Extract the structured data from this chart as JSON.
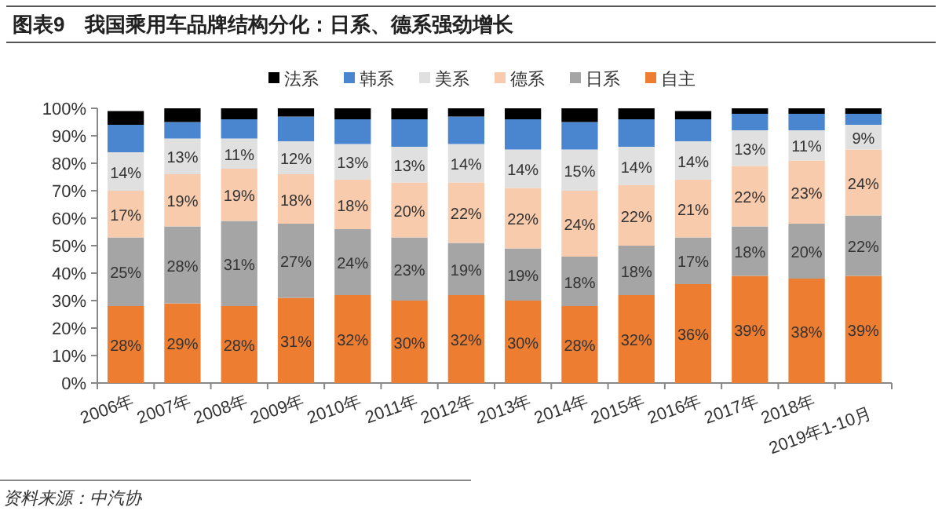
{
  "chart_data": {
    "type": "bar",
    "stacked": true,
    "title": "图表9　我国乘用车品牌结构分化：日系、德系强劲增长",
    "categories": [
      "2006年",
      "2007年",
      "2008年",
      "2009年",
      "2010年",
      "2011年",
      "2012年",
      "2013年",
      "2014年",
      "2015年",
      "2016年",
      "2017年",
      "2018年",
      "2019年1-10月"
    ],
    "series": [
      {
        "name": "自主",
        "color": "#ed7d31",
        "values": [
          28,
          29,
          28,
          31,
          32,
          30,
          32,
          30,
          28,
          32,
          36,
          39,
          38,
          39
        ],
        "value_labels": [
          "28%",
          "29%",
          "28%",
          "31%",
          "32%",
          "30%",
          "32%",
          "30%",
          "28%",
          "32%",
          "36%",
          "39%",
          "38%",
          "39%"
        ]
      },
      {
        "name": "日系",
        "color": "#a5a5a5",
        "values": [
          25,
          28,
          31,
          27,
          24,
          23,
          19,
          19,
          18,
          18,
          17,
          18,
          20,
          22
        ],
        "value_labels": [
          "25%",
          "28%",
          "31%",
          "27%",
          "24%",
          "23%",
          "19%",
          "19%",
          "18%",
          "18%",
          "17%",
          "18%",
          "20%",
          "22%"
        ]
      },
      {
        "name": "德系",
        "color": "#f8cbad",
        "values": [
          17,
          19,
          19,
          18,
          18,
          20,
          22,
          22,
          24,
          22,
          21,
          22,
          23,
          24
        ],
        "value_labels": [
          "17%",
          "19%",
          "19%",
          "18%",
          "18%",
          "20%",
          "22%",
          "22%",
          "24%",
          "22%",
          "21%",
          "22%",
          "23%",
          "24%"
        ]
      },
      {
        "name": "美系",
        "color": "#e0e0e0",
        "values": [
          14,
          13,
          11,
          12,
          13,
          13,
          14,
          14,
          15,
          14,
          14,
          13,
          11,
          9
        ],
        "value_labels": [
          "14%",
          "13%",
          "11%",
          "12%",
          "13%",
          "13%",
          "14%",
          "14%",
          "15%",
          "14%",
          "14%",
          "13%",
          "11%",
          "9%"
        ]
      },
      {
        "name": "韩系",
        "color": "#4a86d0",
        "values": [
          10,
          6,
          7,
          9,
          9,
          10,
          10,
          11,
          10,
          10,
          8,
          6,
          6,
          4
        ]
      },
      {
        "name": "法系",
        "color": "#000000",
        "values": [
          5,
          5,
          4,
          3,
          4,
          4,
          3,
          4,
          5,
          4,
          3,
          2,
          2,
          2
        ]
      }
    ],
    "ylim": [
      0,
      100
    ],
    "yticks": [
      {
        "value": 0,
        "label": "0%"
      },
      {
        "value": 10,
        "label": "10%"
      },
      {
        "value": 20,
        "label": "20%"
      },
      {
        "value": 30,
        "label": "30%"
      },
      {
        "value": 40,
        "label": "40%"
      },
      {
        "value": 50,
        "label": "50%"
      },
      {
        "value": 60,
        "label": "60%"
      },
      {
        "value": 70,
        "label": "70%"
      },
      {
        "value": 80,
        "label": "80%"
      },
      {
        "value": 90,
        "label": "90%"
      },
      {
        "value": 100,
        "label": "100%"
      }
    ],
    "grid": false,
    "legend": "top",
    "annotations": [
      "资料来源：中汽协"
    ]
  }
}
